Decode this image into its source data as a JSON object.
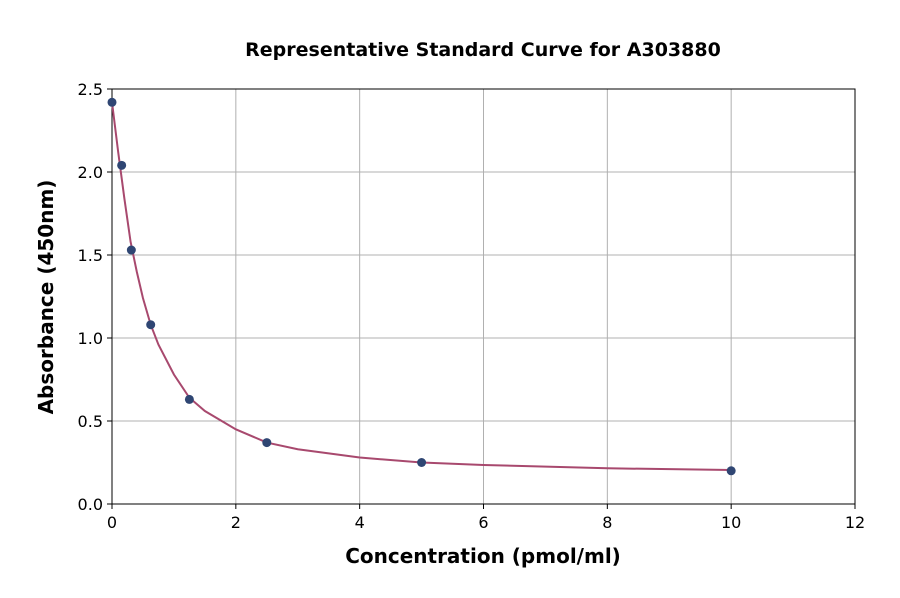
{
  "chart_data": {
    "type": "scatter",
    "title": "Representative Standard Curve for A303880",
    "x_label": "Concentration (pmol/ml)",
    "y_label": "Absorbance (450nm)",
    "xlim": [
      0,
      12
    ],
    "xticks": [
      0,
      2,
      4,
      6,
      8,
      10,
      12
    ],
    "ylim": [
      0,
      2.5
    ],
    "yticks": [
      {
        "value": 0,
        "label": "0.0"
      },
      0.5,
      {
        "value": 1,
        "label": "1.0"
      },
      1.5,
      {
        "value": 2,
        "label": "2.0"
      },
      2.5
    ],
    "grid": true,
    "series": [
      {
        "type": "line",
        "color": "#a8496e",
        "x": [
          0,
          0.1,
          0.2,
          0.3,
          0.4,
          0.5,
          0.625,
          0.75,
          1,
          1.25,
          1.5,
          2,
          2.5,
          3,
          4,
          5,
          6,
          8,
          10
        ],
        "values": [
          2.42,
          2.12,
          1.84,
          1.58,
          1.4,
          1.24,
          1.08,
          0.96,
          0.78,
          0.64,
          0.56,
          0.45,
          0.37,
          0.33,
          0.28,
          0.25,
          0.235,
          0.215,
          0.205
        ]
      },
      {
        "type": "scatter",
        "color": "#2f4673",
        "x": [
          0,
          0.156,
          0.3125,
          0.625,
          1.25,
          2.5,
          5,
          10
        ],
        "values": [
          2.42,
          2.04,
          1.53,
          1.08,
          0.63,
          0.37,
          0.25,
          0.2
        ]
      }
    ]
  }
}
